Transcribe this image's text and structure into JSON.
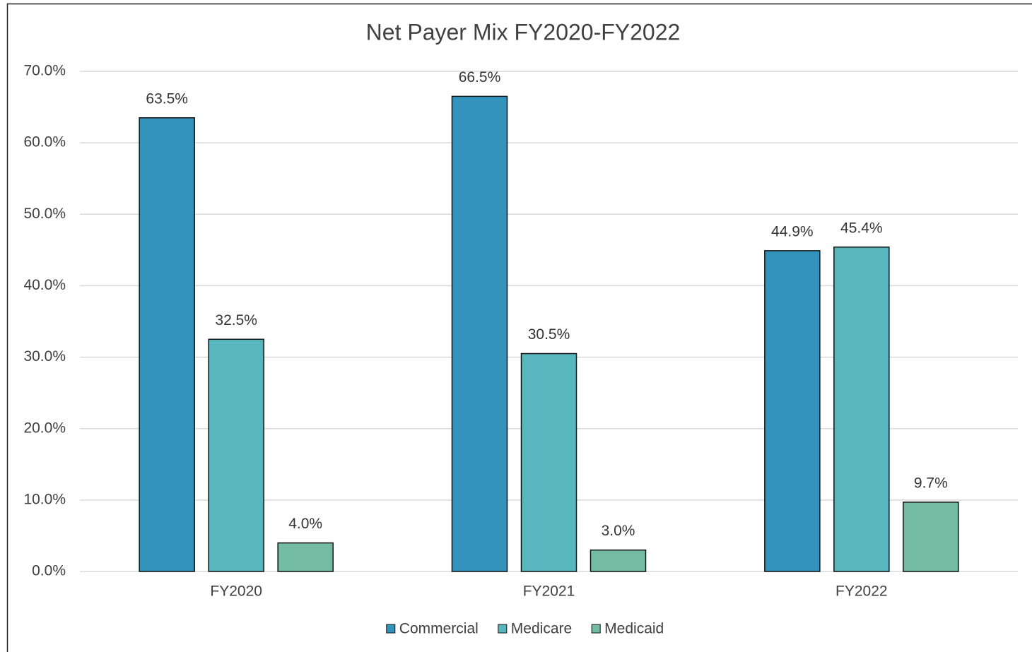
{
  "chart_data": {
    "type": "bar",
    "title": "Net Payer Mix FY2020-FY2022",
    "categories": [
      "FY2020",
      "FY2021",
      "FY2022"
    ],
    "series": [
      {
        "name": "Commercial",
        "color": "#3393bb",
        "values": [
          63.5,
          66.5,
          44.9
        ],
        "value_labels": [
          "63.5%",
          "66.5%",
          "44.9%"
        ]
      },
      {
        "name": "Medicare",
        "color": "#58b6bf",
        "values": [
          32.5,
          30.5,
          45.4
        ],
        "value_labels": [
          "32.5%",
          "30.5%",
          "45.4%"
        ]
      },
      {
        "name": "Medicaid",
        "color": "#73bba3",
        "values": [
          4.0,
          3.0,
          9.7
        ],
        "value_labels": [
          "4.0%",
          "3.0%",
          "9.7%"
        ]
      }
    ],
    "ylim": [
      0,
      70
    ],
    "yticks": [
      {
        "value": 0,
        "label": "0.0%"
      },
      {
        "value": 10,
        "label": "10.0%"
      },
      {
        "value": 20,
        "label": "20.0%"
      },
      {
        "value": 30,
        "label": "30.0%"
      },
      {
        "value": 40,
        "label": "40.0%"
      },
      {
        "value": 50,
        "label": "50.0%"
      },
      {
        "value": 60,
        "label": "60.0%"
      },
      {
        "value": 70,
        "label": "70.0%"
      }
    ],
    "grid": true,
    "legend": "bottom"
  }
}
